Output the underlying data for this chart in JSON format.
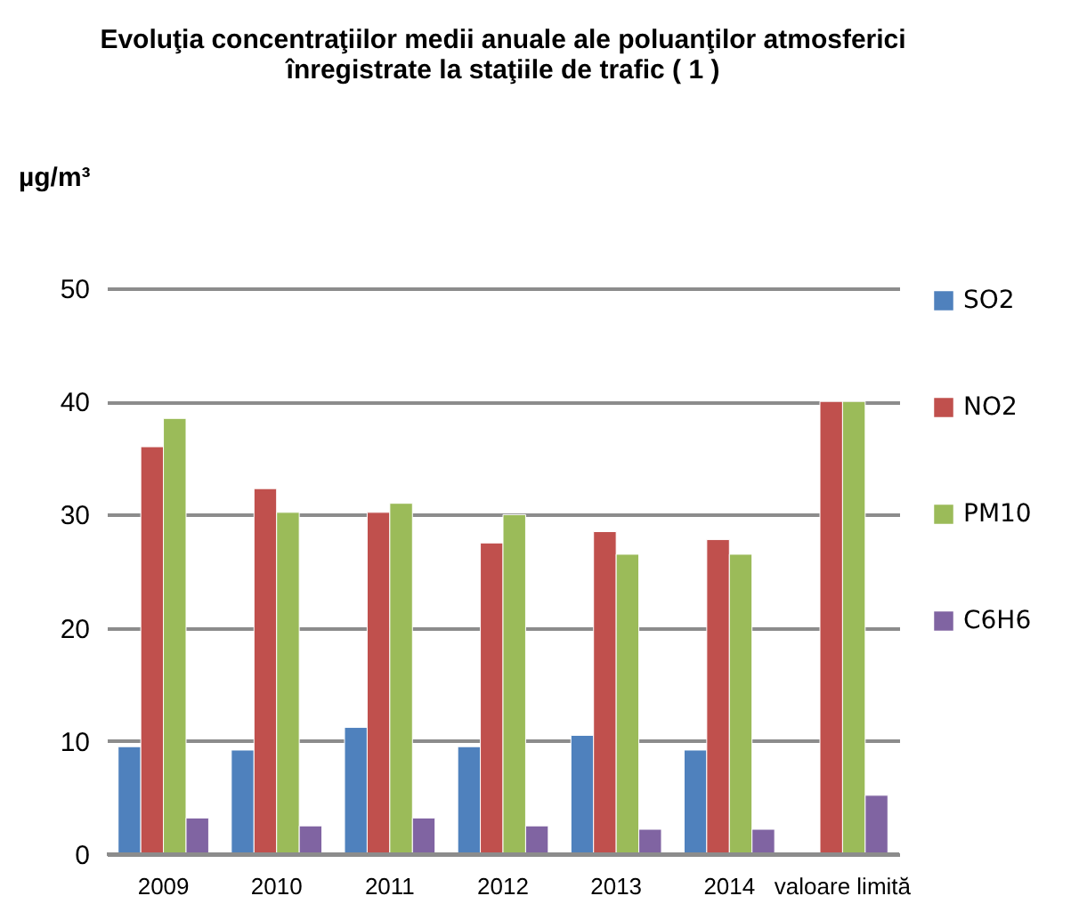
{
  "chart_data": {
    "type": "bar",
    "title": [
      "Evoluţia  concentraţiilor medii anuale ale poluanţilor atmosferici",
      "înregistrate la staţiile de trafic ( 1 )"
    ],
    "ylabel": "µg/m³",
    "categories": [
      "2009",
      "2010",
      "2011",
      "2012",
      "2013",
      "2014",
      "valoare limită"
    ],
    "series": [
      {
        "name": "SO2",
        "color": "#4f81bd",
        "values": [
          9.5,
          9.2,
          11.2,
          9.5,
          10.5,
          9.2,
          null
        ]
      },
      {
        "name": "NO2",
        "color": "#c0504d",
        "values": [
          36,
          32.3,
          30.2,
          27.5,
          28.5,
          27.8,
          40
        ]
      },
      {
        "name": "PM10",
        "color": "#9bbb59",
        "values": [
          38.5,
          30.2,
          31,
          30,
          26.5,
          26.5,
          40
        ]
      },
      {
        "name": "C6H6",
        "color": "#8064a2",
        "values": [
          3.2,
          2.5,
          3.2,
          2.5,
          2.2,
          2.2,
          5.2
        ]
      }
    ],
    "ylim": [
      0,
      50
    ],
    "yticks": [
      0,
      10,
      20,
      30,
      40,
      50
    ],
    "grid": "y",
    "legend": "right"
  }
}
